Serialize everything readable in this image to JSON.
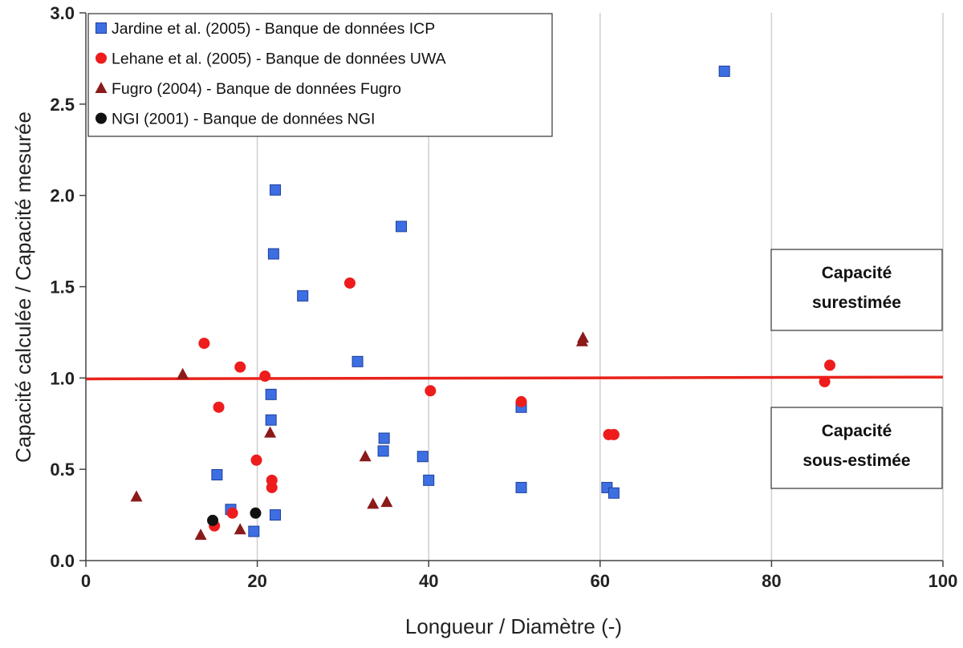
{
  "chart_data": {
    "type": "scatter",
    "xlabel": "Longueur / Diamètre (-)",
    "ylabel": "Capacité calculée / Capacité  mesurée",
    "xlim": [
      0,
      100
    ],
    "ylim": [
      0,
      3.0
    ],
    "xticks": [
      "0",
      "20",
      "40",
      "60",
      "80",
      "100"
    ],
    "yticks": [
      "0.0",
      "0.5",
      "1.0",
      "1.5",
      "2.0",
      "2.5",
      "3.0"
    ],
    "grid": "vertical",
    "legend_position": "top-left",
    "reference_line": {
      "y_start": 0.995,
      "y_end": 1.005,
      "color": "#e8231c"
    },
    "annotations": [
      {
        "text": [
          "Capacité",
          "surestimée"
        ]
      },
      {
        "text": [
          "Capacité",
          "sous-estimée"
        ]
      }
    ],
    "series": [
      {
        "name": "Jardine et al. (2005) - Banque de données ICP",
        "marker": "square",
        "color": "#3d6fe3",
        "x": [
          74.5,
          22.1,
          36.8,
          21.9,
          25.3,
          31.7,
          21.6,
          21.6,
          50.8,
          34.8,
          34.7,
          39.3,
          15.3,
          40.0,
          50.8,
          60.8,
          61.6,
          16.9,
          22.1,
          19.6
        ],
        "y": [
          2.68,
          2.03,
          1.83,
          1.68,
          1.45,
          1.09,
          0.91,
          0.77,
          0.84,
          0.67,
          0.6,
          0.57,
          0.47,
          0.44,
          0.4,
          0.4,
          0.37,
          0.28,
          0.25,
          0.16
        ]
      },
      {
        "name": "Lehane et al. (2005) - Banque de données UWA",
        "marker": "circle",
        "color": "#ee1c1c",
        "x": [
          30.8,
          13.8,
          18.0,
          20.9,
          15.5,
          86.8,
          86.2,
          40.2,
          50.8,
          61.0,
          61.6,
          19.9,
          21.7,
          21.7,
          17.1,
          15.0
        ],
        "y": [
          1.52,
          1.19,
          1.06,
          1.01,
          0.84,
          1.07,
          0.98,
          0.93,
          0.87,
          0.69,
          0.69,
          0.55,
          0.44,
          0.4,
          0.26,
          0.19
        ]
      },
      {
        "name": "Fugro (2004) - Banque de données Fugro",
        "marker": "triangle",
        "color": "#8b1a1a",
        "x": [
          58.0,
          57.9,
          11.3,
          21.5,
          32.6,
          5.9,
          35.1,
          33.5,
          18.0,
          13.4
        ],
        "y": [
          1.22,
          1.2,
          1.02,
          0.7,
          0.57,
          0.35,
          0.32,
          0.31,
          0.17,
          0.14
        ]
      },
      {
        "name": "NGI (2001) - Banque de données NGI",
        "marker": "circle",
        "color": "#111111",
        "x": [
          14.8,
          19.8
        ],
        "y": [
          0.22,
          0.26
        ]
      }
    ]
  }
}
